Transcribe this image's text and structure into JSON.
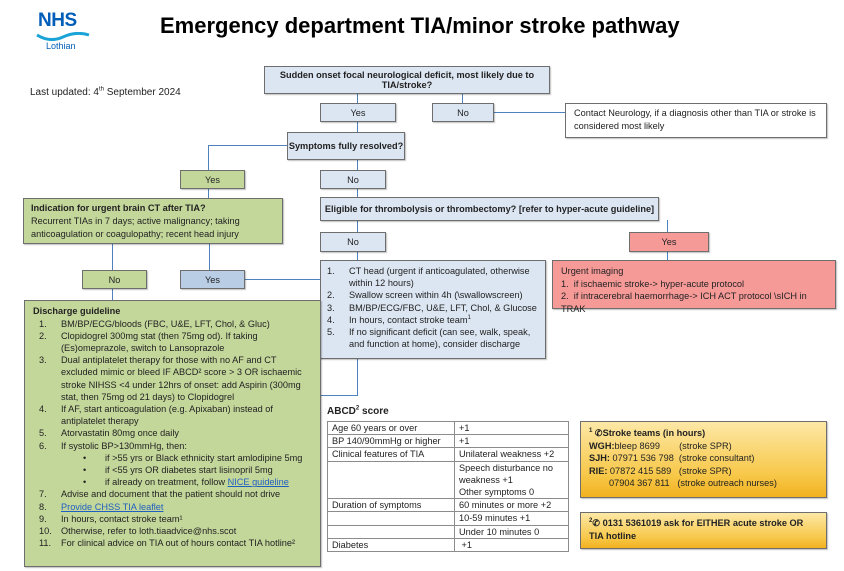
{
  "logo": {
    "top": "NHS",
    "bottom": "Lothian",
    "color": "#005eb8"
  },
  "title": "Emergency department TIA/minor stroke pathway",
  "last_updated": {
    "prefix": "Last updated: 4",
    "sup": "th",
    "suffix": " September 2024"
  },
  "q1": "Sudden onset focal neurological deficit, most likely due to TIA/stroke?",
  "q1_yes": "Yes",
  "q1_no": "No",
  "neurology": "Contact Neurology, if a diagnosis other than TIA or stroke is considered most likely",
  "q2": "Symptoms fully resolved?",
  "q2_yes": "Yes",
  "q2_no": "No",
  "indication": {
    "title": "Indication for urgent brain CT after TIA?",
    "text": "Recurrent TIAs in 7 days; active malignancy; taking anticoagulation or coagulopathy; recent head injury",
    "no": "No",
    "yes": "Yes"
  },
  "q3": "Eligible for thrombolysis or thrombectomy? [refer to hyper-acute guideline]",
  "q3_no": "No",
  "q3_yes": "Yes",
  "ct_steps": [
    "CT head (urgent if anticoagulated, otherwise within 12 hours)",
    "Swallow screen within 4h (\\swallowscreen)",
    "BM/BP/ECG/FBC, U&E, LFT, Chol, & Glucose",
    "In hours, contact stroke team",
    "If no significant deficit (can see, walk, speak, and function at home), consider discharge"
  ],
  "ct_step4_sup": "1",
  "urgent": {
    "title": "Urgent imaging",
    "items": [
      "if ischaemic stroke-> hyper-acute protocol",
      "if intracerebral haemorrhage-> ICH ACT protocol \\sICH in TRAK"
    ]
  },
  "discharge": {
    "title": "Discharge guideline",
    "items": [
      "BM/BP/ECG/bloods (FBC, U&E, LFT, Chol, & Gluc)",
      "Clopidogrel 300mg stat (then 75mg od). If taking (Es)omeprazole, switch to Lansoprazole",
      "Dual antiplatelet therapy for those with no AF and CT excluded mimic or bleed IF ABCD² score > 3 OR ischaemic stroke NIHSS <4 under 12hrs of onset: add Aspirin (300mg stat, then 75mg od 21 days) to Clopidogrel",
      "If AF, start anticoagulation (e.g. Apixaban) instead of antiplatelet therapy",
      "Atorvastatin 80mg once daily",
      "If systolic BP>130mmHg, then:",
      "Advise and document that the patient should not drive",
      "Provide CHSS TIA leaflet",
      "In hours, contact stroke team¹",
      "Otherwise, refer to loth.tiaadvice@nhs.scot",
      "For clinical advice on TIA out of hours contact TIA hotline²"
    ],
    "bp_bullets": [
      "if >55 yrs or Black ethnicity start amlodipine 5mg",
      "if <55 yrs OR diabetes start lisinopril 5mg"
    ],
    "bp_bullet3_prefix": "if already on treatment, follow ",
    "bp_bullet3_link": "NICE guideline"
  },
  "abcd": {
    "title": "ABCD",
    "title_sup": "2",
    "title_suffix": " score",
    "rows": [
      [
        "Age 60 years or over",
        "+1"
      ],
      [
        "BP 140/90mmHg or higher",
        "+1"
      ],
      [
        "Clinical features of TIA",
        "Unilateral weakness +2"
      ],
      [
        "",
        "Speech disturbance no weakness +1"
      ],
      [
        "",
        "Other symptoms 0"
      ],
      [
        "Duration of symptoms",
        "60 minutes or more +2"
      ],
      [
        "",
        "10-59 minutes +1"
      ],
      [
        "",
        "Under 10 minutes 0"
      ],
      [
        "Diabetes",
        " +1"
      ]
    ]
  },
  "stroke_teams": {
    "sup": "1",
    "icon": "phone-icon",
    "title": "Stroke teams (in hours)",
    "lines": [
      {
        "label": "WGH:",
        "value": " bleep 8699",
        "role": "(stroke SPR)"
      },
      {
        "label": "SJH:",
        "value": " 07971 536 798",
        "role": "(stroke consultant)"
      },
      {
        "label": "RIE:",
        "value": " 07872 415 589",
        "role": "(stroke SPR)"
      },
      {
        "label": "",
        "value": "07904 367 811",
        "role": "(stroke outreach nurses)"
      }
    ]
  },
  "hotline": {
    "sup": "2",
    "icon": "phone-icon",
    "text": "0131 5361019 ask for EITHER acute stroke OR TIA hotline"
  }
}
